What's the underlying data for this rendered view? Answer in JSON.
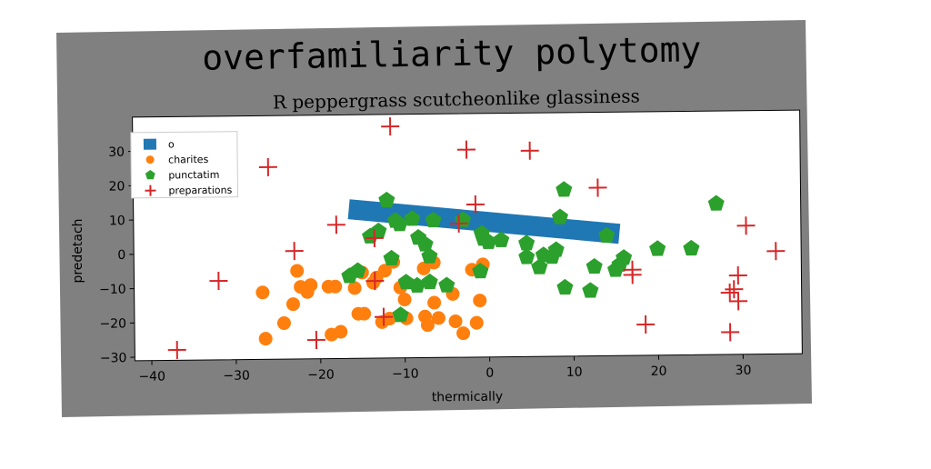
{
  "chart_data": {
    "type": "scatter",
    "title": "overfamiliarity polytomy",
    "subtitle": "R peppergrass scutcheonlike glassiness",
    "xlabel": "thermically",
    "ylabel": "predetach",
    "xlim": [
      -42,
      37
    ],
    "ylim": [
      -31,
      40
    ],
    "x_ticks": [
      -40,
      -30,
      -20,
      -10,
      0,
      10,
      20,
      30
    ],
    "y_ticks": [
      -30,
      -20,
      -10,
      0,
      10,
      20,
      30
    ],
    "grid": false,
    "legend_position": "top-left",
    "series": [
      {
        "name": "o",
        "marker": "line",
        "color": "#1f77b4",
        "points": [
          [
            -16.5,
            12.5
          ],
          [
            15.5,
            4.5
          ]
        ]
      },
      {
        "name": "charites",
        "marker": "circle",
        "color": "#ff7f0e",
        "points": [
          [
            -26.5,
            -25
          ],
          [
            -26.8,
            -11.5
          ],
          [
            -24.3,
            -20.5
          ],
          [
            -23.2,
            -15
          ],
          [
            -22.7,
            -5.3
          ],
          [
            -22.3,
            -10
          ],
          [
            -21.5,
            -11.5
          ],
          [
            -21.1,
            -9.5
          ],
          [
            -19,
            -10
          ],
          [
            -18.2,
            -10
          ],
          [
            -18.7,
            -24
          ],
          [
            -17.6,
            -23.2
          ],
          [
            -15.9,
            -10.5
          ],
          [
            -15.5,
            -18
          ],
          [
            -15,
            -6
          ],
          [
            -14.8,
            -18
          ],
          [
            -13.7,
            -9
          ],
          [
            -13.3,
            -7.5
          ],
          [
            -12.3,
            -5.5
          ],
          [
            -12.7,
            -20.5
          ],
          [
            -11.8,
            -19.5
          ],
          [
            -11.3,
            -3
          ],
          [
            -10.5,
            -10.5
          ],
          [
            -10,
            -14
          ],
          [
            -9.8,
            -19.5
          ],
          [
            -7.7,
            -5
          ],
          [
            -7.6,
            -19
          ],
          [
            -7.3,
            -21.5
          ],
          [
            -6.5,
            -15
          ],
          [
            -6.5,
            -3.3
          ],
          [
            -6,
            -19.5
          ],
          [
            -4,
            -20.5
          ],
          [
            -4.3,
            -12.5
          ],
          [
            -3.1,
            -24
          ],
          [
            -2,
            -5.5
          ],
          [
            -1.5,
            -21
          ],
          [
            -1.1,
            -14.5
          ],
          [
            -0.7,
            -4
          ]
        ]
      },
      {
        "name": "punctatim",
        "marker": "pentagon",
        "color": "#2ca02c",
        "points": [
          [
            -16.5,
            -7
          ],
          [
            -15.5,
            -5.5
          ],
          [
            -14,
            4.5
          ],
          [
            -13,
            6
          ],
          [
            -12,
            15
          ],
          [
            -11,
            9
          ],
          [
            -11.5,
            -2
          ],
          [
            -10.5,
            -18.5
          ],
          [
            -10.5,
            8
          ],
          [
            -9.8,
            -9
          ],
          [
            -9,
            9.5
          ],
          [
            -8.5,
            -10
          ],
          [
            -8.3,
            4
          ],
          [
            -7.5,
            2
          ],
          [
            -7,
            -1.5
          ],
          [
            -6.5,
            9
          ],
          [
            -7,
            -9
          ],
          [
            -5,
            -10
          ],
          [
            -3,
            9
          ],
          [
            -1,
            -6
          ],
          [
            -0.8,
            5
          ],
          [
            -0.6,
            3.5
          ],
          [
            0,
            2.5
          ],
          [
            1.5,
            3
          ],
          [
            4.5,
            2
          ],
          [
            4.5,
            -2
          ],
          [
            6,
            -5
          ],
          [
            6.5,
            -1.5
          ],
          [
            7.5,
            -2
          ],
          [
            8,
            0
          ],
          [
            8.5,
            9.5
          ],
          [
            9,
            -11
          ],
          [
            9,
            17.5
          ],
          [
            12,
            -12
          ],
          [
            12.5,
            -5
          ],
          [
            14,
            4
          ],
          [
            15,
            -6
          ],
          [
            15.5,
            -4.5
          ],
          [
            16,
            -2.5
          ],
          [
            20,
            0
          ],
          [
            24,
            0
          ],
          [
            27,
            13
          ]
        ]
      },
      {
        "name": "preparations",
        "marker": "plus",
        "color": "#d62728",
        "points": [
          [
            -37,
            -28
          ],
          [
            -32,
            -8
          ],
          [
            -26,
            25
          ],
          [
            -23,
            0.5
          ],
          [
            -20.5,
            -25.5
          ],
          [
            -18,
            8
          ],
          [
            -13.5,
            4
          ],
          [
            -13.5,
            -8.5
          ],
          [
            -12.5,
            -19
          ],
          [
            -11.5,
            36.5
          ],
          [
            -3.5,
            8
          ],
          [
            -2.5,
            29.5
          ],
          [
            -1.5,
            13.5
          ],
          [
            5,
            29
          ],
          [
            13,
            18
          ],
          [
            17,
            -7.5
          ],
          [
            17,
            -6
          ],
          [
            18.5,
            -22
          ],
          [
            28.5,
            -24.5
          ],
          [
            28.5,
            -13
          ],
          [
            29,
            -12
          ],
          [
            29.5,
            -8
          ],
          [
            29.5,
            -15.5
          ],
          [
            30.5,
            6.5
          ],
          [
            34,
            -1
          ]
        ]
      }
    ]
  }
}
